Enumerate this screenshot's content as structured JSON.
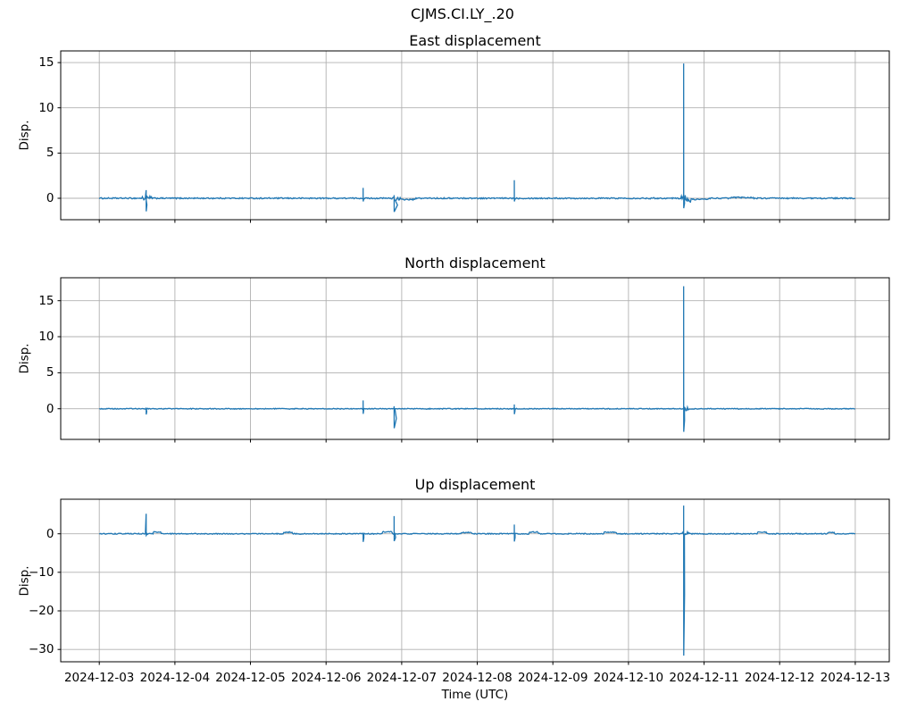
{
  "figure": {
    "suptitle": "CJMS.CI.LY_.20",
    "xlabel": "Time (UTC)",
    "line_color": "#1f77b4",
    "grid_color": "#b0b0b0",
    "spine_color": "#000000",
    "background": "#ffffff"
  },
  "x_axis": {
    "tick_labels": [
      "2024-12-03",
      "2024-12-04",
      "2024-12-05",
      "2024-12-06",
      "2024-12-07",
      "2024-12-08",
      "2024-12-09",
      "2024-12-10",
      "2024-12-11",
      "2024-12-12",
      "2024-12-13"
    ],
    "xlim_days": [
      -0.51,
      10.45
    ],
    "data_range_days": [
      0,
      10
    ]
  },
  "chart_data": [
    {
      "type": "line",
      "title": "East displacement",
      "ylabel": "Disp.",
      "ylim": [
        -2.37,
        16.29
      ],
      "yticks": [
        {
          "v": 0,
          "label": "0"
        },
        {
          "v": 5,
          "label": "5"
        },
        {
          "v": 10,
          "label": "10"
        },
        {
          "v": 15,
          "label": "15"
        }
      ],
      "baseline": 0,
      "noise_amp": 0.07,
      "spikes": [
        {
          "t": 0.62,
          "up": 0.9,
          "down": -1.45,
          "w": 0.01
        },
        {
          "t": 3.49,
          "up": 1.15,
          "down": -0.35,
          "w": 0.006
        },
        {
          "t": 3.9,
          "up": 0.35,
          "down": -1.5,
          "w": 0.045
        },
        {
          "t": 5.49,
          "up": 2.0,
          "down": -0.35,
          "w": 0.006
        },
        {
          "t": 7.73,
          "up": 14.9,
          "down": -1.1,
          "w": 0.012
        }
      ],
      "bumps": [
        {
          "t0": 3.93,
          "t1": 4.18,
          "dy": -0.14
        },
        {
          "t0": 7.78,
          "t1": 8.05,
          "dy": -0.12
        },
        {
          "t0": 8.35,
          "t1": 8.65,
          "dy": 0.08
        }
      ],
      "amp_segments": [
        {
          "t0": 0.56,
          "t1": 0.7,
          "amp": 0.25
        },
        {
          "t0": 3.86,
          "t1": 3.98,
          "amp": 0.28
        },
        {
          "t0": 7.69,
          "t1": 7.82,
          "amp": 0.4
        }
      ]
    },
    {
      "type": "line",
      "title": "North displacement",
      "ylabel": "Disp.",
      "ylim": [
        -4.25,
        18.18
      ],
      "yticks": [
        {
          "v": 0,
          "label": "0"
        },
        {
          "v": 5,
          "label": "5"
        },
        {
          "v": 10,
          "label": "10"
        },
        {
          "v": 15,
          "label": "15"
        }
      ],
      "baseline": 0,
      "noise_amp": 0.06,
      "spikes": [
        {
          "t": 0.62,
          "up": 0.15,
          "down": -0.8,
          "w": 0.008
        },
        {
          "t": 3.49,
          "up": 1.15,
          "down": -0.7,
          "w": 0.006
        },
        {
          "t": 3.9,
          "up": 0.35,
          "down": -2.7,
          "w": 0.03
        },
        {
          "t": 5.49,
          "up": 0.6,
          "down": -0.75,
          "w": 0.008
        },
        {
          "t": 7.73,
          "up": 17.0,
          "down": -3.2,
          "w": 0.012
        }
      ],
      "bumps": [],
      "amp_segments": [
        {
          "t0": 7.7,
          "t1": 7.8,
          "amp": 0.3
        }
      ]
    },
    {
      "type": "line",
      "title": "Up displacement",
      "ylabel": "Disp.",
      "ylim": [
        -33.2,
        8.96
      ],
      "yticks": [
        {
          "v": 0,
          "label": "0"
        },
        {
          "v": -10,
          "label": "−10"
        },
        {
          "v": -20,
          "label": "−20"
        },
        {
          "v": -30,
          "label": "−30"
        }
      ],
      "baseline": 0,
      "noise_amp": 0.13,
      "spikes": [
        {
          "t": 0.62,
          "up": 5.2,
          "down": -0.4,
          "w": 0.008
        },
        {
          "t": 3.49,
          "up": 0.3,
          "down": -2.1,
          "w": 0.01
        },
        {
          "t": 3.9,
          "up": 4.6,
          "down": -1.9,
          "w": 0.02
        },
        {
          "t": 5.49,
          "up": 2.4,
          "down": -2.0,
          "w": 0.01
        },
        {
          "t": 7.73,
          "up": 7.3,
          "down": -31.6,
          "w": 0.012
        }
      ],
      "bumps": [
        {
          "t0": 0.72,
          "t1": 0.82,
          "dy": 0.45
        },
        {
          "t0": 2.43,
          "t1": 2.55,
          "dy": 0.4
        },
        {
          "t0": 3.74,
          "t1": 3.87,
          "dy": 0.5
        },
        {
          "t0": 4.78,
          "t1": 4.92,
          "dy": 0.35
        },
        {
          "t0": 5.68,
          "t1": 5.8,
          "dy": 0.45
        },
        {
          "t0": 6.67,
          "t1": 6.84,
          "dy": 0.4
        },
        {
          "t0": 8.7,
          "t1": 8.82,
          "dy": 0.4
        },
        {
          "t0": 9.63,
          "t1": 9.72,
          "dy": 0.3
        }
      ],
      "amp_segments": [
        {
          "t0": 7.7,
          "t1": 7.8,
          "amp": 0.5
        }
      ]
    }
  ]
}
